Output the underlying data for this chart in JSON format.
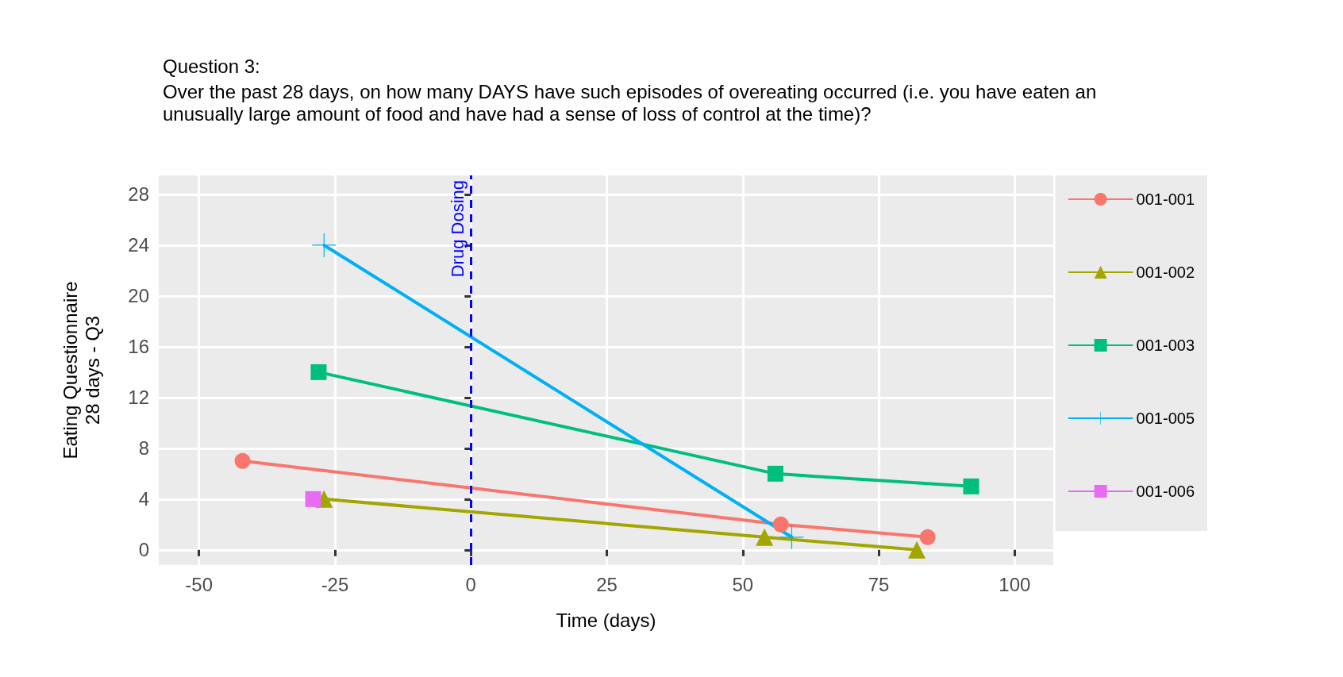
{
  "chart_data": {
    "type": "line",
    "title": "Question 3:",
    "subtitle": "Over the past 28 days, on how many DAYS have such episodes of overeating occurred (i.e. you have eaten an unusually large amount of food and have had a sense of loss of control at the time)?",
    "xlabel": "Time (days)",
    "ylabel": "Eating Questionnaire\n28 days - Q3",
    "series": [
      {
        "name": "001-001",
        "color": "#f8766d",
        "marker": "circle",
        "x": [
          -42,
          57,
          84
        ],
        "values": [
          7,
          2,
          1
        ]
      },
      {
        "name": "001-002",
        "color": "#a3a500",
        "marker": "triangle",
        "x": [
          -27,
          54,
          82
        ],
        "values": [
          4,
          1,
          0
        ]
      },
      {
        "name": "001-003",
        "color": "#00bf7d",
        "marker": "square",
        "x": [
          -28,
          56,
          92
        ],
        "values": [
          14,
          6,
          5
        ]
      },
      {
        "name": "001-005",
        "color": "#00b0f6",
        "marker": "cross",
        "x": [
          -27,
          59
        ],
        "values": [
          24,
          1
        ]
      },
      {
        "name": "001-006",
        "color": "#e76bf3",
        "marker": "square",
        "x": [
          -29
        ],
        "values": [
          4
        ]
      }
    ],
    "xlim": [
      -57.4,
      107.1
    ],
    "xticks": [
      -50,
      -25,
      0,
      25,
      50,
      75,
      100
    ],
    "ylim": [
      -1.2,
      29.5
    ],
    "yticks": [
      0,
      4,
      8,
      12,
      16,
      20,
      24,
      28
    ],
    "ref_lines": [
      {
        "axis": "x",
        "value": 0,
        "label": "Drug Dosing",
        "color": "#0000ff",
        "line_style": "dashed"
      }
    ],
    "grid": true,
    "legend": "right",
    "line_style": "solid"
  }
}
